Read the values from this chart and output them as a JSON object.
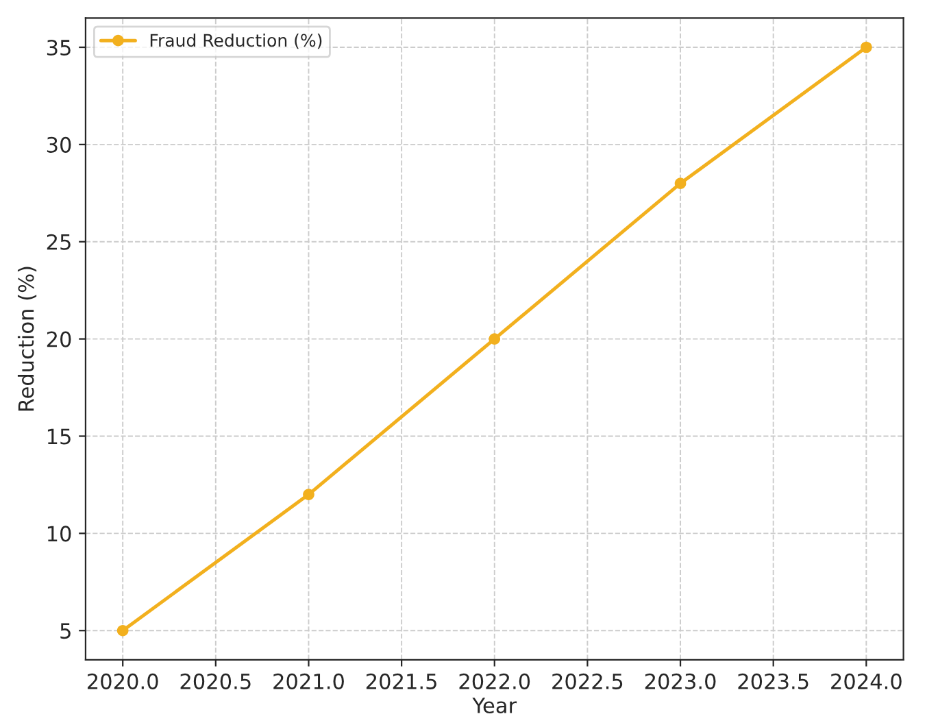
{
  "chart_data": {
    "type": "line",
    "xlabel": "Year",
    "ylabel": "Reduction (%)",
    "x": [
      2020,
      2021,
      2022,
      2023,
      2024
    ],
    "series": [
      {
        "name": "Fraud Reduction (%)",
        "color": "#f2b01e",
        "values": [
          5,
          12,
          20,
          28,
          35
        ]
      }
    ],
    "xlim": [
      2019.8,
      2024.2
    ],
    "xticks": [
      {
        "value": 2020,
        "label": "2020.0"
      },
      {
        "value": 2020.5,
        "label": "2020.5"
      },
      {
        "value": 2021,
        "label": "2021.0"
      },
      {
        "value": 2021.5,
        "label": "2021.5"
      },
      {
        "value": 2022,
        "label": "2022.0"
      },
      {
        "value": 2022.5,
        "label": "2022.5"
      },
      {
        "value": 2023,
        "label": "2023.0"
      },
      {
        "value": 2023.5,
        "label": "2023.5"
      },
      {
        "value": 2024,
        "label": "2024.0"
      }
    ],
    "ylim": [
      3.5,
      36.5
    ],
    "yticks": [
      5,
      10,
      15,
      20,
      25,
      30,
      35
    ],
    "grid": true,
    "legend": "top left",
    "marker": "circle",
    "line_style": "solid"
  }
}
